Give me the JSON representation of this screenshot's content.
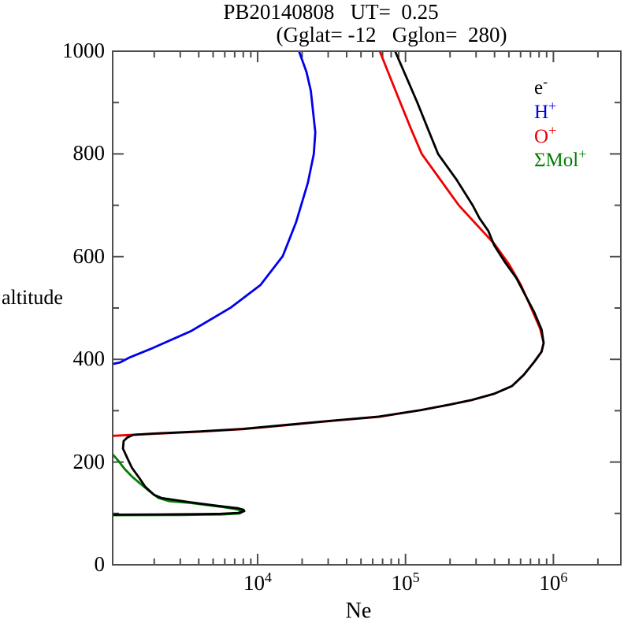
{
  "title": {
    "line1": "PB20140808   UT=  0.25",
    "line2": "(Gglat= -12   Gglon=  280)"
  },
  "axis_labels": {
    "y": "altitude",
    "x": "Ne"
  },
  "chart_data": {
    "type": "line",
    "title": "PB20140808   UT=  0.25",
    "subtitle": "(Gglat= -12   Gglon=  280)",
    "xlabel": "Ne",
    "ylabel": "altitude",
    "x_scale": "log10",
    "xlim_log10": [
      3.02,
      6.456
    ],
    "ylim": [
      0,
      1000
    ],
    "grid": false,
    "frame_color": "#4d4d4d",
    "x_major_tick_exponents": [
      4,
      5,
      6
    ],
    "y_major_ticks": [
      0,
      200,
      400,
      600,
      800,
      1000
    ],
    "y_minor_tick_step": 100,
    "legend_position": "top-right-inside",
    "series": [
      {
        "name": "electron-density",
        "label": "e",
        "sup": "-",
        "color": "#000000",
        "points_log10Ne_alt": [
          [
            3.02,
            97.5
          ],
          [
            3.3,
            98.0
          ],
          [
            3.6,
            98.6
          ],
          [
            3.75,
            99.2
          ],
          [
            3.87,
            101.0
          ],
          [
            3.91,
            104.5
          ],
          [
            3.905,
            107.0
          ],
          [
            3.87,
            110.0
          ],
          [
            3.75,
            114.0
          ],
          [
            3.54,
            122.0
          ],
          [
            3.35,
            130.0
          ],
          [
            3.3,
            136.0
          ],
          [
            3.24,
            152.0
          ],
          [
            3.2,
            169.0
          ],
          [
            3.15,
            189.0
          ],
          [
            3.12,
            207.0
          ],
          [
            3.09,
            226.0
          ],
          [
            3.094,
            241.0
          ],
          [
            3.12,
            248.0
          ],
          [
            3.16,
            253.0
          ],
          [
            3.3,
            255.5
          ],
          [
            3.6,
            259.5
          ],
          [
            3.9,
            264.5
          ],
          [
            4.2,
            272.5
          ],
          [
            4.5,
            280.5
          ],
          [
            4.82,
            288.5
          ],
          [
            5.1,
            301.0
          ],
          [
            5.3,
            312.0
          ],
          [
            5.45,
            321.0
          ],
          [
            5.6,
            333.0
          ],
          [
            5.72,
            348.0
          ],
          [
            5.8,
            370.0
          ],
          [
            5.87,
            395.0
          ],
          [
            5.92,
            415.0
          ],
          [
            5.934,
            432.0
          ],
          [
            5.92,
            458.0
          ],
          [
            5.87,
            492.0
          ],
          [
            5.81,
            525.0
          ],
          [
            5.75,
            558.0
          ],
          [
            5.67,
            590.0
          ],
          [
            5.6,
            622.0
          ],
          [
            5.56,
            650.0
          ],
          [
            5.5,
            675.0
          ],
          [
            5.454,
            700.0
          ],
          [
            5.345,
            750.0
          ],
          [
            5.22,
            800.0
          ],
          [
            5.15,
            850.0
          ],
          [
            5.08,
            900.0
          ],
          [
            5.005,
            950.0
          ],
          [
            4.93,
            1000.0
          ]
        ]
      },
      {
        "name": "hydrogen-ion",
        "label": "H",
        "sup": "+",
        "color": "#0000ee",
        "points_log10Ne_alt": [
          [
            3.02,
            391.0
          ],
          [
            3.07,
            394.0
          ],
          [
            3.13,
            403.0
          ],
          [
            3.29,
            422.0
          ],
          [
            3.55,
            455.0
          ],
          [
            3.82,
            501.0
          ],
          [
            4.02,
            545.0
          ],
          [
            4.17,
            601.0
          ],
          [
            4.26,
            667.0
          ],
          [
            4.34,
            744.0
          ],
          [
            4.38,
            800.0
          ],
          [
            4.39,
            842.0
          ],
          [
            4.36,
            923.0
          ],
          [
            4.33,
            960.0
          ],
          [
            4.28,
            1000.0
          ]
        ]
      },
      {
        "name": "oxygen-ion",
        "label": "O",
        "sup": "+",
        "color": "#ee0000",
        "points_log10Ne_alt": [
          [
            3.02,
            251.0
          ],
          [
            3.3,
            255.0
          ],
          [
            3.6,
            259.0
          ],
          [
            3.9,
            264.0
          ],
          [
            4.2,
            272.0
          ],
          [
            4.5,
            280.0
          ],
          [
            4.82,
            288.0
          ],
          [
            5.1,
            301.0
          ],
          [
            5.3,
            312.0
          ],
          [
            5.45,
            321.0
          ],
          [
            5.6,
            333.0
          ],
          [
            5.72,
            348.0
          ],
          [
            5.8,
            370.0
          ],
          [
            5.87,
            395.0
          ],
          [
            5.92,
            415.0
          ],
          [
            5.934,
            432.0
          ],
          [
            5.91,
            460.0
          ],
          [
            5.85,
            500.0
          ],
          [
            5.78,
            545.0
          ],
          [
            5.7,
            585.0
          ],
          [
            5.6,
            625.0
          ],
          [
            5.52,
            650.0
          ],
          [
            5.44,
            675.0
          ],
          [
            5.36,
            700.0
          ],
          [
            5.235,
            750.0
          ],
          [
            5.11,
            800.0
          ],
          [
            5.035,
            850.0
          ],
          [
            4.965,
            900.0
          ],
          [
            4.895,
            950.0
          ],
          [
            4.826,
            1000.0
          ]
        ]
      },
      {
        "name": "molecular-ions-sum",
        "label": "ΣMol",
        "sup": "+",
        "color": "#008000",
        "points_log10Ne_alt": [
          [
            3.02,
            215.0
          ],
          [
            3.06,
            202.0
          ],
          [
            3.1,
            187.0
          ],
          [
            3.15,
            172.0
          ],
          [
            3.21,
            157.0
          ],
          [
            3.27,
            143.0
          ],
          [
            3.33,
            130.0
          ],
          [
            3.4,
            124.0
          ],
          [
            3.54,
            120.5
          ],
          [
            3.75,
            113.0
          ],
          [
            3.86,
            108.0
          ],
          [
            3.9,
            103.5
          ],
          [
            3.88,
            100.0
          ],
          [
            3.75,
            97.8
          ],
          [
            3.5,
            97.0
          ],
          [
            3.2,
            96.6
          ],
          [
            3.02,
            96.4
          ]
        ]
      }
    ]
  }
}
